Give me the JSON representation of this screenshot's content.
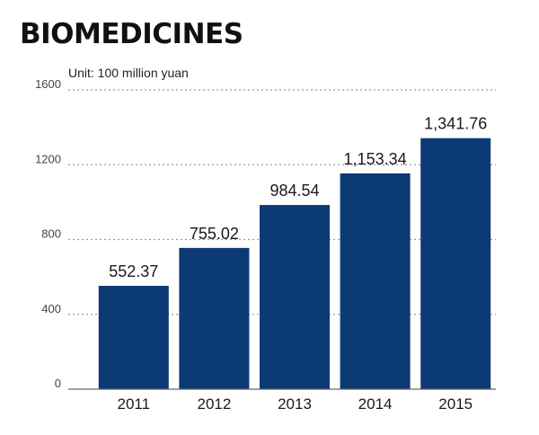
{
  "chart_data": {
    "type": "bar",
    "title": "BIOMEDICINES",
    "unit_label": "Unit: 100 million yuan",
    "categories": [
      "2011",
      "2012",
      "2013",
      "2014",
      "2015"
    ],
    "values": [
      552.37,
      755.02,
      984.54,
      1153.34,
      1341.76
    ],
    "value_labels": [
      "552.37",
      "755.02",
      "984.54",
      "1,153.34",
      "1,341.76"
    ],
    "yticks": [
      0,
      400,
      800,
      1200,
      1600
    ],
    "ytick_labels": [
      "0",
      "400",
      "800",
      "1200",
      "1600"
    ],
    "ylim": [
      0,
      1600
    ],
    "xlabel": "",
    "ylabel": "",
    "grid": "dotted-horizontal",
    "colors": {
      "bar": "#0b3a75",
      "grid": "#9a9a9a",
      "axis": "#666666"
    }
  }
}
